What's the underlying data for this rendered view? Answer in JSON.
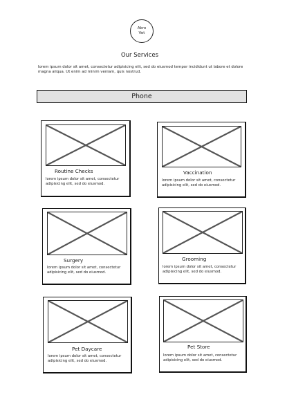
{
  "logo": {
    "line1": "Akro",
    "line2": "Vet"
  },
  "page": {
    "heading": "Our Services",
    "intro": "lorem ipsum dolor sit amet, consectetur adipisicing elit, sed do eiusmod tempor incididunt ut labore et dolore magna aliqua. Ut enim ad minim veniam, quis nostrud."
  },
  "phone": {
    "label": "Phone"
  },
  "services": [
    {
      "title": "Routine Checks",
      "desc": "lorem ipsum dolor sit amet, consectetur adipisicing elit, sed do eiusmod."
    },
    {
      "title": "Vaccination",
      "desc": "lorem ipsum dolor sit amet, consectetur adipisicing elit, sed do eiusmod."
    },
    {
      "title": "Surgery",
      "desc": "lorem ipsum dolor sit amet, consectetur adipisicing elit, sed do eiusmod."
    },
    {
      "title": "Grooming",
      "desc": "lorem ipsum dolor sit amet, consectetur adipisicing elit, sed do eiusmod."
    },
    {
      "title": "Pet Daycare",
      "desc": "lorem ipsum dolor sit amet, consectetur adipisicing elit, sed do eiusmod."
    },
    {
      "title": "Pet Store",
      "desc": "lorem ipsum dolor sit amet, consectetur adipisicing elit, sed do eiusmod."
    }
  ]
}
